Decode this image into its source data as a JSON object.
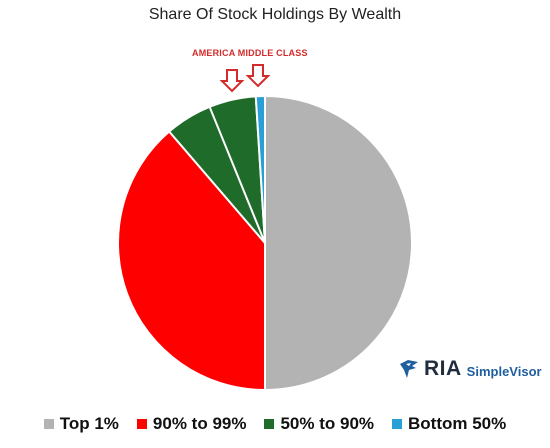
{
  "chart_data": {
    "type": "pie",
    "title": "Share Of Stock Holdings By Wealth",
    "annotation": "AMERICA MIDDLE CLASS",
    "categories": [
      "Top 1%",
      "90% to 99%",
      "50% to 90%",
      "Bottom 50%"
    ],
    "values": [
      50,
      38.7,
      10.3,
      1
    ],
    "colors": [
      "#b3b3b3",
      "#ff0000",
      "#1f6b2a",
      "#2a9fd6"
    ],
    "legend_position": "bottom"
  },
  "logo": {
    "ria": "RIA",
    "simplevisor": "SimpleVisor"
  }
}
